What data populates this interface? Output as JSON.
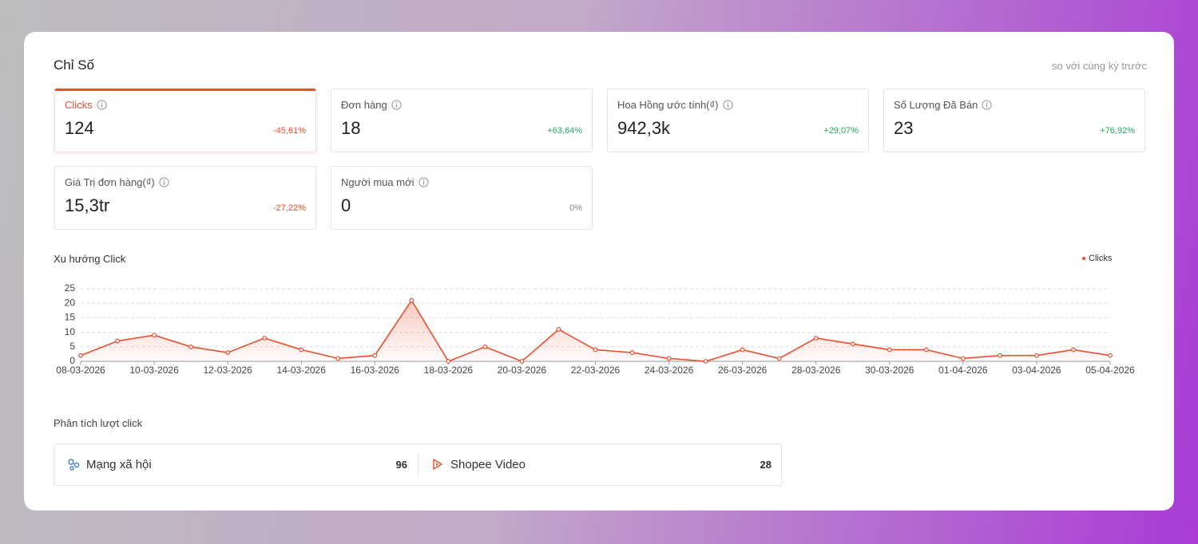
{
  "header": {
    "title": "Chỉ Số",
    "compare_note": "so với cùng kỳ trước"
  },
  "metrics": [
    {
      "label": "Clicks",
      "value": "124",
      "change": "-45,61%"
    },
    {
      "label": "Đơn hàng",
      "value": "18",
      "change": "+63,64%"
    },
    {
      "label": "Hoa Hồng ước tính(₫)",
      "value": "942,3k",
      "change": "+29,07%"
    },
    {
      "label": "Số Lượng Đã Bán",
      "value": "23",
      "change": "+76,92%"
    },
    {
      "label": "Giá Trị đơn hàng(₫)",
      "value": "15,3tr",
      "change": "-27,22%"
    },
    {
      "label": "Người mua mới",
      "value": "0",
      "change": "0%"
    }
  ],
  "chart_data": {
    "type": "line",
    "title": "Xu hướng Click",
    "categories": [
      "08-03-2026",
      null,
      "10-03-2026",
      null,
      "12-03-2026",
      null,
      "14-03-2026",
      null,
      "16-03-2026",
      null,
      "18-03-2026",
      null,
      "20-03-2026",
      null,
      "22-03-2026",
      null,
      "24-03-2026",
      null,
      "26-03-2026",
      null,
      "28-03-2026",
      null,
      "30-03-2026",
      null,
      "01-04-2026",
      null,
      "03-04-2026",
      null,
      "05-04-2026"
    ],
    "series": [
      {
        "name": "Clicks",
        "color": "#ee4d2d",
        "values": [
          2,
          7,
          9,
          5,
          3,
          8,
          4,
          1,
          2,
          21,
          0,
          5,
          0,
          11,
          4,
          3,
          1,
          0,
          4,
          1,
          8,
          6,
          4,
          4,
          1,
          2,
          2,
          4,
          2
        ]
      }
    ],
    "ylim": [
      0,
      25
    ],
    "yticks": [
      0,
      5,
      10,
      15,
      20,
      25
    ],
    "grid": true,
    "legend": "top-right"
  },
  "breakdown": {
    "title": "Phân tích lượt click",
    "items": [
      {
        "label": "Mạng xã hội",
        "value": 96
      },
      {
        "label": "Shopee Video",
        "value": 28
      }
    ]
  }
}
